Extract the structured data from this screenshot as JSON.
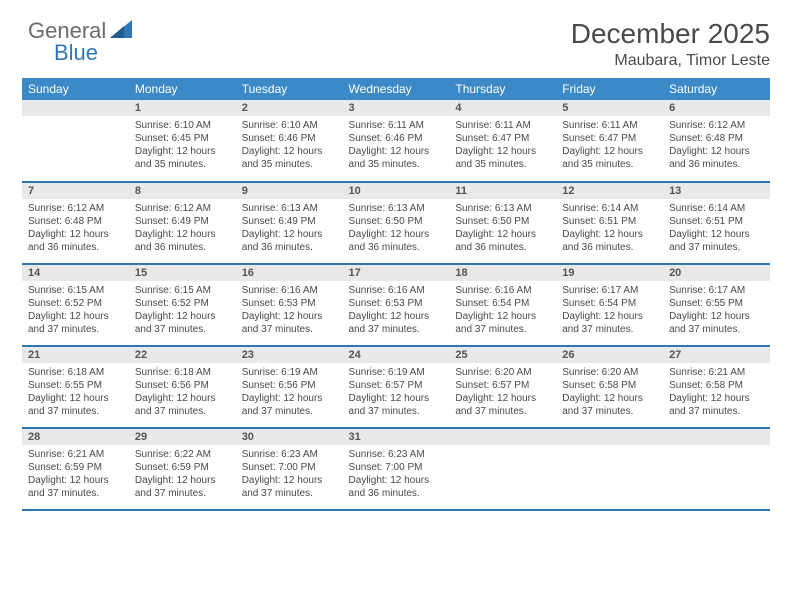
{
  "logo": {
    "text1": "General",
    "text2": "Blue"
  },
  "header": {
    "month_title": "December 2025",
    "location": "Maubara, Timor Leste"
  },
  "colors": {
    "header_bg": "#3b89c6",
    "header_text": "#ffffff",
    "row_divider": "#2f78b6",
    "daynum_bg": "#e9e9e9",
    "text": "#4a4a4a",
    "logo_gray": "#6b6b6b",
    "logo_blue": "#2f78b6"
  },
  "weekdays": [
    "Sunday",
    "Monday",
    "Tuesday",
    "Wednesday",
    "Thursday",
    "Friday",
    "Saturday"
  ],
  "weeks": [
    [
      {
        "day": ""
      },
      {
        "day": "1",
        "sunrise": "Sunrise: 6:10 AM",
        "sunset": "Sunset: 6:45 PM",
        "daylight1": "Daylight: 12 hours",
        "daylight2": "and 35 minutes."
      },
      {
        "day": "2",
        "sunrise": "Sunrise: 6:10 AM",
        "sunset": "Sunset: 6:46 PM",
        "daylight1": "Daylight: 12 hours",
        "daylight2": "and 35 minutes."
      },
      {
        "day": "3",
        "sunrise": "Sunrise: 6:11 AM",
        "sunset": "Sunset: 6:46 PM",
        "daylight1": "Daylight: 12 hours",
        "daylight2": "and 35 minutes."
      },
      {
        "day": "4",
        "sunrise": "Sunrise: 6:11 AM",
        "sunset": "Sunset: 6:47 PM",
        "daylight1": "Daylight: 12 hours",
        "daylight2": "and 35 minutes."
      },
      {
        "day": "5",
        "sunrise": "Sunrise: 6:11 AM",
        "sunset": "Sunset: 6:47 PM",
        "daylight1": "Daylight: 12 hours",
        "daylight2": "and 35 minutes."
      },
      {
        "day": "6",
        "sunrise": "Sunrise: 6:12 AM",
        "sunset": "Sunset: 6:48 PM",
        "daylight1": "Daylight: 12 hours",
        "daylight2": "and 36 minutes."
      }
    ],
    [
      {
        "day": "7",
        "sunrise": "Sunrise: 6:12 AM",
        "sunset": "Sunset: 6:48 PM",
        "daylight1": "Daylight: 12 hours",
        "daylight2": "and 36 minutes."
      },
      {
        "day": "8",
        "sunrise": "Sunrise: 6:12 AM",
        "sunset": "Sunset: 6:49 PM",
        "daylight1": "Daylight: 12 hours",
        "daylight2": "and 36 minutes."
      },
      {
        "day": "9",
        "sunrise": "Sunrise: 6:13 AM",
        "sunset": "Sunset: 6:49 PM",
        "daylight1": "Daylight: 12 hours",
        "daylight2": "and 36 minutes."
      },
      {
        "day": "10",
        "sunrise": "Sunrise: 6:13 AM",
        "sunset": "Sunset: 6:50 PM",
        "daylight1": "Daylight: 12 hours",
        "daylight2": "and 36 minutes."
      },
      {
        "day": "11",
        "sunrise": "Sunrise: 6:13 AM",
        "sunset": "Sunset: 6:50 PM",
        "daylight1": "Daylight: 12 hours",
        "daylight2": "and 36 minutes."
      },
      {
        "day": "12",
        "sunrise": "Sunrise: 6:14 AM",
        "sunset": "Sunset: 6:51 PM",
        "daylight1": "Daylight: 12 hours",
        "daylight2": "and 36 minutes."
      },
      {
        "day": "13",
        "sunrise": "Sunrise: 6:14 AM",
        "sunset": "Sunset: 6:51 PM",
        "daylight1": "Daylight: 12 hours",
        "daylight2": "and 37 minutes."
      }
    ],
    [
      {
        "day": "14",
        "sunrise": "Sunrise: 6:15 AM",
        "sunset": "Sunset: 6:52 PM",
        "daylight1": "Daylight: 12 hours",
        "daylight2": "and 37 minutes."
      },
      {
        "day": "15",
        "sunrise": "Sunrise: 6:15 AM",
        "sunset": "Sunset: 6:52 PM",
        "daylight1": "Daylight: 12 hours",
        "daylight2": "and 37 minutes."
      },
      {
        "day": "16",
        "sunrise": "Sunrise: 6:16 AM",
        "sunset": "Sunset: 6:53 PM",
        "daylight1": "Daylight: 12 hours",
        "daylight2": "and 37 minutes."
      },
      {
        "day": "17",
        "sunrise": "Sunrise: 6:16 AM",
        "sunset": "Sunset: 6:53 PM",
        "daylight1": "Daylight: 12 hours",
        "daylight2": "and 37 minutes."
      },
      {
        "day": "18",
        "sunrise": "Sunrise: 6:16 AM",
        "sunset": "Sunset: 6:54 PM",
        "daylight1": "Daylight: 12 hours",
        "daylight2": "and 37 minutes."
      },
      {
        "day": "19",
        "sunrise": "Sunrise: 6:17 AM",
        "sunset": "Sunset: 6:54 PM",
        "daylight1": "Daylight: 12 hours",
        "daylight2": "and 37 minutes."
      },
      {
        "day": "20",
        "sunrise": "Sunrise: 6:17 AM",
        "sunset": "Sunset: 6:55 PM",
        "daylight1": "Daylight: 12 hours",
        "daylight2": "and 37 minutes."
      }
    ],
    [
      {
        "day": "21",
        "sunrise": "Sunrise: 6:18 AM",
        "sunset": "Sunset: 6:55 PM",
        "daylight1": "Daylight: 12 hours",
        "daylight2": "and 37 minutes."
      },
      {
        "day": "22",
        "sunrise": "Sunrise: 6:18 AM",
        "sunset": "Sunset: 6:56 PM",
        "daylight1": "Daylight: 12 hours",
        "daylight2": "and 37 minutes."
      },
      {
        "day": "23",
        "sunrise": "Sunrise: 6:19 AM",
        "sunset": "Sunset: 6:56 PM",
        "daylight1": "Daylight: 12 hours",
        "daylight2": "and 37 minutes."
      },
      {
        "day": "24",
        "sunrise": "Sunrise: 6:19 AM",
        "sunset": "Sunset: 6:57 PM",
        "daylight1": "Daylight: 12 hours",
        "daylight2": "and 37 minutes."
      },
      {
        "day": "25",
        "sunrise": "Sunrise: 6:20 AM",
        "sunset": "Sunset: 6:57 PM",
        "daylight1": "Daylight: 12 hours",
        "daylight2": "and 37 minutes."
      },
      {
        "day": "26",
        "sunrise": "Sunrise: 6:20 AM",
        "sunset": "Sunset: 6:58 PM",
        "daylight1": "Daylight: 12 hours",
        "daylight2": "and 37 minutes."
      },
      {
        "day": "27",
        "sunrise": "Sunrise: 6:21 AM",
        "sunset": "Sunset: 6:58 PM",
        "daylight1": "Daylight: 12 hours",
        "daylight2": "and 37 minutes."
      }
    ],
    [
      {
        "day": "28",
        "sunrise": "Sunrise: 6:21 AM",
        "sunset": "Sunset: 6:59 PM",
        "daylight1": "Daylight: 12 hours",
        "daylight2": "and 37 minutes."
      },
      {
        "day": "29",
        "sunrise": "Sunrise: 6:22 AM",
        "sunset": "Sunset: 6:59 PM",
        "daylight1": "Daylight: 12 hours",
        "daylight2": "and 37 minutes."
      },
      {
        "day": "30",
        "sunrise": "Sunrise: 6:23 AM",
        "sunset": "Sunset: 7:00 PM",
        "daylight1": "Daylight: 12 hours",
        "daylight2": "and 37 minutes."
      },
      {
        "day": "31",
        "sunrise": "Sunrise: 6:23 AM",
        "sunset": "Sunset: 7:00 PM",
        "daylight1": "Daylight: 12 hours",
        "daylight2": "and 36 minutes."
      },
      {
        "day": ""
      },
      {
        "day": ""
      },
      {
        "day": ""
      }
    ]
  ]
}
